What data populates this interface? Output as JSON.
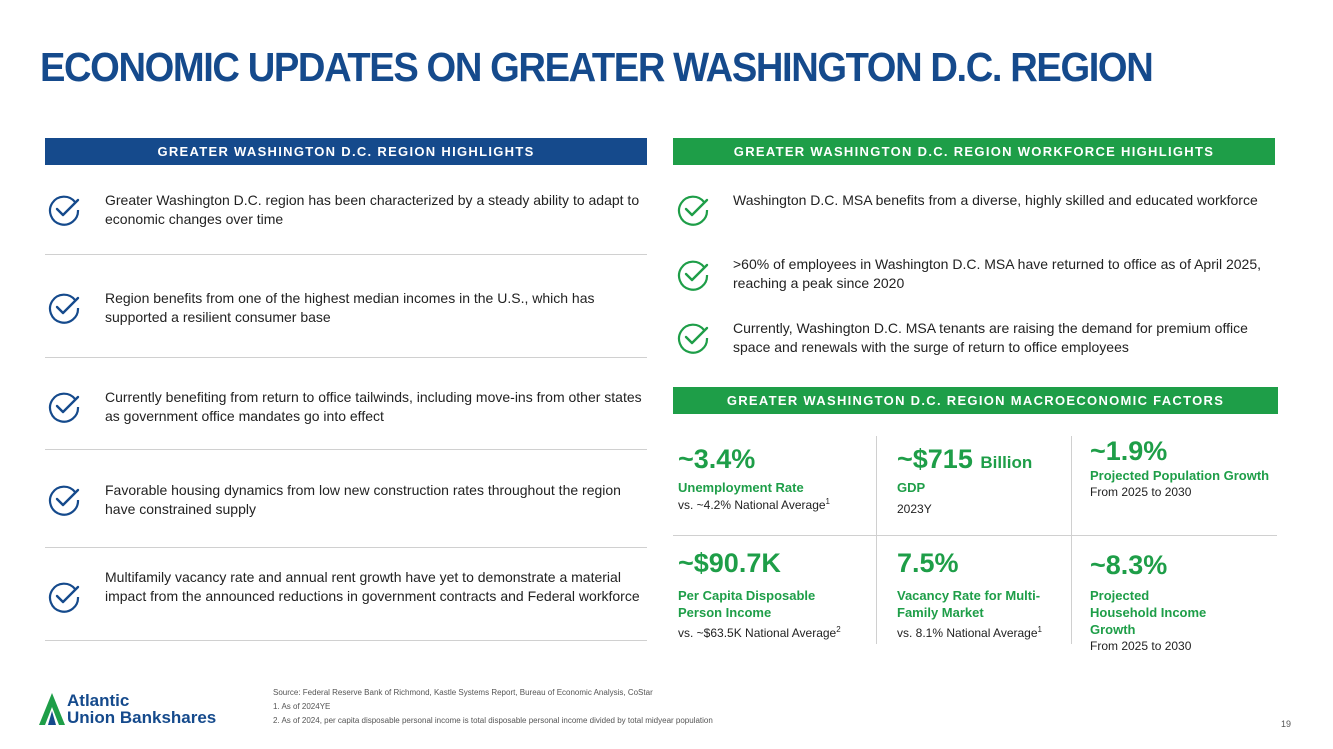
{
  "title": "ECONOMIC UPDATES ON GREATER WASHINGTON D.C. REGION",
  "left_section": {
    "header": "GREATER WASHINGTON D.C. REGION HIGHLIGHTS",
    "items": [
      "Greater Washington D.C. region has been characterized by a steady ability to adapt to economic changes over time",
      "Region benefits from one of the highest median incomes in the U.S., which has supported a resilient consumer base",
      "Currently benefiting from return to office tailwinds, including move-ins from other states as government office mandates go into effect",
      "Favorable housing dynamics from low new construction rates throughout the region have constrained supply",
      "Multifamily vacancy rate and annual rent growth have yet to demonstrate a material impact from the announced reductions in government contracts and Federal workforce"
    ]
  },
  "workforce_section": {
    "header": "GREATER WASHINGTON D.C. REGION WORKFORCE HIGHLIGHTS",
    "items": [
      "Washington D.C. MSA benefits from a diverse, highly skilled and educated workforce",
      ">60% of employees in Washington D.C. MSA have returned to office as of April 2025, reaching a peak since 2020",
      "Currently, Washington D.C. MSA tenants are raising the demand for premium office space and renewals with the surge of return to office employees"
    ]
  },
  "macro_section": {
    "header": "GREATER WASHINGTON D.C. REGION MACROECONOMIC FACTORS",
    "kpis": [
      {
        "value": "~3.4%",
        "unit": "",
        "label": "Unemployment Rate",
        "sub": "vs. ~4.2% National Average",
        "sup": "1"
      },
      {
        "value": "~$715",
        "unit": "Billion",
        "label": "GDP",
        "sub": "2023Y",
        "sup": ""
      },
      {
        "value": "~1.9%",
        "unit": "",
        "label": "Projected Population Growth",
        "sub": "From 2025 to 2030",
        "sup": ""
      },
      {
        "value": "~$90.7K",
        "unit": "",
        "label": "Per Capita Disposable Person Income",
        "sub": "vs. ~$63.5K National Average",
        "sup": "2"
      },
      {
        "value": "7.5%",
        "unit": "",
        "label": "Vacancy Rate for Multi-Family Market",
        "sub": "vs. 8.1% National Average",
        "sup": "1"
      },
      {
        "value": "~8.3%",
        "unit": "",
        "label": "Projected Household Income Growth",
        "sub": "From 2025 to 2030",
        "sup": ""
      }
    ]
  },
  "footer": {
    "logo_line1": "Atlantic",
    "logo_line2": "Union Bankshares",
    "source": "Source: Federal Reserve Bank of Richmond, Kastle Systems Report, Bureau of Economic Analysis, CoStar",
    "note1": "1. As of 2024YE",
    "note2": "2. As of 2024, per capita disposable personal income is total disposable personal income divided by total midyear population",
    "page_number": "19"
  },
  "colors": {
    "brand_blue": "#154a8c",
    "brand_green": "#1e9e48"
  }
}
